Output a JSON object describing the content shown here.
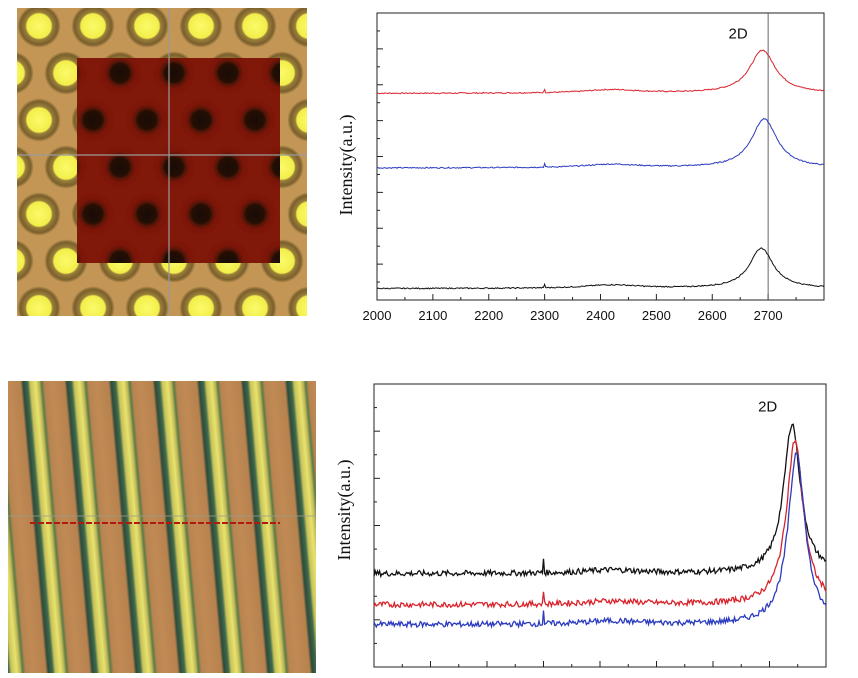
{
  "colors": {
    "red": "#d9232b",
    "blue": "#2b3bbf",
    "black": "#111111"
  },
  "chart_data": [
    {
      "type": "line",
      "ylabel": "Intensity(a.u.)",
      "xlabel": "",
      "annotation": "2D",
      "xlim": [
        2000,
        2800
      ],
      "xticks": [
        2000,
        2100,
        2200,
        2300,
        2400,
        2500,
        2600,
        2700
      ],
      "reference_line_x": 2700,
      "series": [
        {
          "color": "red",
          "peak_x": 2690,
          "baseline": 0.72,
          "peak": 0.87,
          "width": 28
        },
        {
          "color": "blue",
          "peak_x": 2693,
          "baseline": 0.46,
          "peak": 0.63,
          "width": 28
        },
        {
          "color": "black",
          "peak_x": 2688,
          "baseline": 0.04,
          "peak": 0.18,
          "width": 26
        }
      ]
    },
    {
      "type": "line",
      "ylabel": "Intensity(a.u.)",
      "xlabel": "",
      "annotation": "2D",
      "xlim": [
        2000,
        2800
      ],
      "series": [
        {
          "color": "black",
          "peak_x": 2740,
          "baseline": 0.33,
          "peak": 0.86,
          "width": 18
        },
        {
          "color": "red",
          "peak_x": 2745,
          "baseline": 0.22,
          "peak": 0.8,
          "width": 18
        },
        {
          "color": "blue",
          "peak_x": 2748,
          "baseline": 0.15,
          "peak": 0.76,
          "width": 18
        }
      ]
    }
  ]
}
